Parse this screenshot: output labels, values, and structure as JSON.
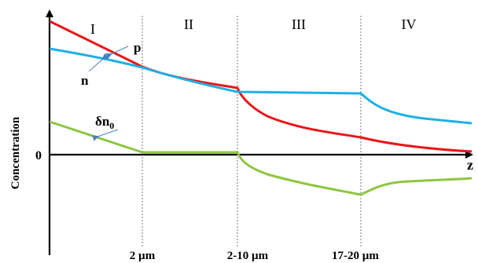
{
  "regions": [
    "I",
    "II",
    "III",
    "IV"
  ],
  "x_ticks": [
    "2 µm",
    "2-10 µm",
    "17-20 µm"
  ],
  "axis": {
    "x_label": "z",
    "y_label": "Concentration",
    "origin_label": "0"
  },
  "curve_labels": {
    "p": "p",
    "n": "n",
    "dn0_main": "δn",
    "dn0_sub": "0"
  },
  "colors": {
    "p": "#e8161b",
    "n": "#1fb0e4",
    "dn0": "#8cc640",
    "axis": "#000000",
    "divider": "#555555",
    "pointer": "#4a7fc1"
  }
}
